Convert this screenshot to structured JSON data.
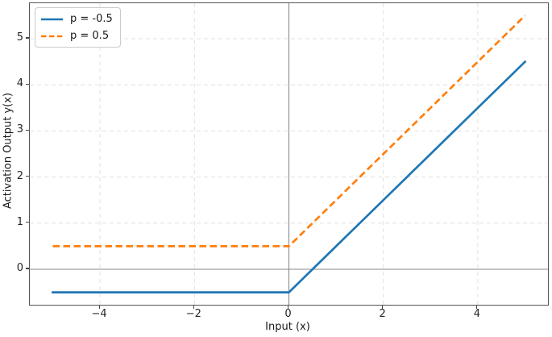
{
  "chart_data": {
    "type": "line",
    "title": "",
    "xlabel": "Input (x)",
    "ylabel": "Activation Output y(x)",
    "xlim": [
      -5.5,
      5.5
    ],
    "ylim": [
      -0.8,
      5.8
    ],
    "xticks": {
      "values": [
        -4,
        -2,
        0,
        2,
        4
      ],
      "labels": [
        "−4",
        "−2",
        "0",
        "2",
        "4"
      ]
    },
    "yticks": {
      "values": [
        0,
        1,
        2,
        3,
        4,
        5
      ],
      "labels": [
        "0",
        "1",
        "2",
        "3",
        "4",
        "5"
      ]
    },
    "grid": {
      "visible": true,
      "style": "dashed",
      "color": "#e1e1e1"
    },
    "reference_lines": {
      "vertical_x": 0,
      "horizontal_y": 0,
      "color": "#8a8a8a"
    },
    "x": [
      -5,
      -4.5,
      -4,
      -3.5,
      -3,
      -2.5,
      -2,
      -1.5,
      -1,
      -0.5,
      0,
      0.5,
      1,
      1.5,
      2,
      2.5,
      3,
      3.5,
      4,
      4.5,
      5
    ],
    "series": [
      {
        "name": "p = -0.5",
        "p": -0.5,
        "color": "#1f77b4",
        "line_style": "solid",
        "values": [
          -0.5,
          -0.5,
          -0.5,
          -0.5,
          -0.5,
          -0.5,
          -0.5,
          -0.5,
          -0.5,
          -0.5,
          -0.5,
          0,
          0.5,
          1,
          1.5,
          2,
          2.5,
          3,
          3.5,
          4,
          4.5
        ]
      },
      {
        "name": "p = 0.5",
        "p": 0.5,
        "color": "#ff7f0e",
        "line_style": "dashed",
        "values": [
          0.5,
          0.5,
          0.5,
          0.5,
          0.5,
          0.5,
          0.5,
          0.5,
          0.5,
          0.5,
          0.5,
          1,
          1.5,
          2,
          2.5,
          3,
          3.5,
          4,
          4.5,
          5,
          5.5
        ]
      }
    ],
    "legend": {
      "position": "upper left",
      "entries": [
        "p = -0.5",
        "p = 0.5"
      ]
    }
  }
}
